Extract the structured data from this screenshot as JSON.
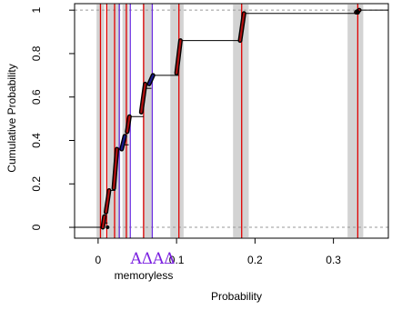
{
  "chart_data": {
    "type": "line",
    "xlabel": "Probability",
    "ylabel": "Cumulative Probability",
    "xlim": [
      -0.03,
      0.37
    ],
    "ylim": [
      -0.05,
      1.03
    ],
    "x_ticks": [
      0,
      0.1,
      0.2,
      0.3
    ],
    "x_tick_labels": [
      "0",
      "0.1",
      "0.2",
      "0.3"
    ],
    "y_ticks": [
      0,
      0.2,
      0.4,
      0.6,
      0.8,
      1
    ],
    "y_tick_labels": [
      "0",
      "0.2",
      "0.4",
      "0.6",
      "0.8",
      "1"
    ],
    "reference_lines_y": [
      0,
      1
    ],
    "gray_bands": [
      {
        "from": -0.002,
        "to": 0.008
      },
      {
        "from": 0.012,
        "to": 0.028
      },
      {
        "from": 0.031,
        "to": 0.039
      },
      {
        "from": 0.057,
        "to": 0.068
      },
      {
        "from": 0.092,
        "to": 0.109
      },
      {
        "from": 0.172,
        "to": 0.192
      },
      {
        "from": 0.318,
        "to": 0.338
      }
    ],
    "red_vlines": [
      0.003,
      0.011,
      0.021,
      0.036,
      0.058,
      0.103,
      0.183,
      0.331
    ],
    "blue_vlines": [
      0.027,
      0.041,
      0.069
    ],
    "steps": [
      {
        "x": -0.03,
        "y": 0.0
      },
      {
        "x": 0.006,
        "y": 0.02
      },
      {
        "x": 0.012,
        "y": 0.17
      },
      {
        "x": 0.022,
        "y": 0.36
      },
      {
        "x": 0.032,
        "y": 0.38
      },
      {
        "x": 0.039,
        "y": 0.51
      },
      {
        "x": 0.058,
        "y": 0.64
      },
      {
        "x": 0.068,
        "y": 0.7
      },
      {
        "x": 0.103,
        "y": 0.86
      },
      {
        "x": 0.184,
        "y": 0.985
      },
      {
        "x": 0.331,
        "y": 1.0
      }
    ],
    "risers": [
      {
        "x_from": 0.006,
        "x_to": 0.008,
        "y_from": 0.0,
        "y_to": 0.05,
        "color": "#b01010"
      },
      {
        "x_from": 0.01,
        "x_to": 0.014,
        "y_from": 0.07,
        "y_to": 0.17,
        "color": "#b01010"
      },
      {
        "x_from": 0.02,
        "x_to": 0.024,
        "y_from": 0.18,
        "y_to": 0.36,
        "color": "#b01010"
      },
      {
        "x_from": 0.03,
        "x_to": 0.034,
        "y_from": 0.36,
        "y_to": 0.42,
        "color": "#1a1a8c"
      },
      {
        "x_from": 0.037,
        "x_to": 0.04,
        "y_from": 0.44,
        "y_to": 0.51,
        "color": "#b01010"
      },
      {
        "x_from": 0.055,
        "x_to": 0.06,
        "y_from": 0.53,
        "y_to": 0.66,
        "color": "#b01010"
      },
      {
        "x_from": 0.065,
        "x_to": 0.07,
        "y_from": 0.66,
        "y_to": 0.7,
        "color": "#1a1a8c"
      },
      {
        "x_from": 0.1,
        "x_to": 0.105,
        "y_from": 0.71,
        "y_to": 0.86,
        "color": "#b01010"
      },
      {
        "x_from": 0.181,
        "x_to": 0.186,
        "y_from": 0.86,
        "y_to": 0.985,
        "color": "#b01010"
      },
      {
        "x_from": 0.329,
        "x_to": 0.333,
        "y_from": 0.99,
        "y_to": 1.0,
        "color": "#b01010"
      }
    ],
    "annotations": {
      "label": "memoryless",
      "greek": "ΑΔΑΔ"
    },
    "colors": {
      "band": "#d3d3d3",
      "red_line": "#e00000",
      "blue_line": "#6a2de0",
      "step": "#000000",
      "greek": "#7a1fe0"
    }
  }
}
